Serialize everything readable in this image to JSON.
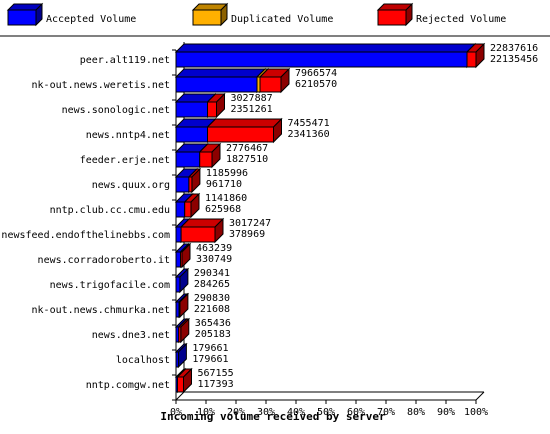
{
  "chart_data": {
    "type": "bar",
    "title": "",
    "xlabel": "Incoming volume received by server",
    "ylabel": "",
    "xlim": [
      0,
      100
    ],
    "x_ticks": [
      "0%",
      "10%",
      "20%",
      "30%",
      "40%",
      "50%",
      "60%",
      "70%",
      "80%",
      "90%",
      "100%"
    ],
    "legend_position": "top",
    "legend": [
      {
        "name": "Accepted Volume",
        "color": "#0000ff"
      },
      {
        "name": "Duplicated Volume",
        "color": "#ffb000"
      },
      {
        "name": "Rejected Volume",
        "color": "#ff0000"
      }
    ],
    "categories": [
      "peer.alt119.net",
      "nk-out.news.weretis.net",
      "news.sonologic.net",
      "news.nntp4.net",
      "feeder.erje.net",
      "news.quux.org",
      "nntp.club.cc.cmu.edu",
      "newsfeed.endofthelinebbs.com",
      "news.corradoroberto.it",
      "news.trigofacile.com",
      "nk-out.news.chmurka.net",
      "news.dne3.net",
      "localhost",
      "nntp.comgw.net"
    ],
    "total_labels": [
      "22837616",
      "7966574",
      "3027887",
      "7455471",
      "2776467",
      "1185996",
      "1141860",
      "3017247",
      "463239",
      "290341",
      "290830",
      "365436",
      "179661",
      "567155"
    ],
    "accepted_labels": [
      "22135456",
      "6210570",
      "2351261",
      "2341360",
      "1827510",
      "961710",
      "625968",
      "378969",
      "330749",
      "284265",
      "221608",
      "205183",
      "179661",
      "117393"
    ],
    "series": [
      {
        "name": "Accepted Volume",
        "values": [
          97.0,
          27.0,
          10.5,
          10.5,
          7.9,
          4.3,
          2.9,
          1.7,
          1.5,
          1.3,
          1.0,
          0.9,
          0.8,
          0.5
        ]
      },
      {
        "name": "Duplicated Volume",
        "values": [
          0,
          1.0,
          0,
          0,
          0,
          0,
          0,
          0,
          0,
          0,
          0,
          0,
          0,
          0
        ]
      },
      {
        "name": "Rejected Volume",
        "values": [
          3.0,
          7.0,
          3.0,
          22.0,
          4.1,
          1.0,
          2.1,
          11.3,
          0.5,
          0.0,
          0.3,
          0.7,
          0,
          2.0
        ]
      }
    ]
  }
}
